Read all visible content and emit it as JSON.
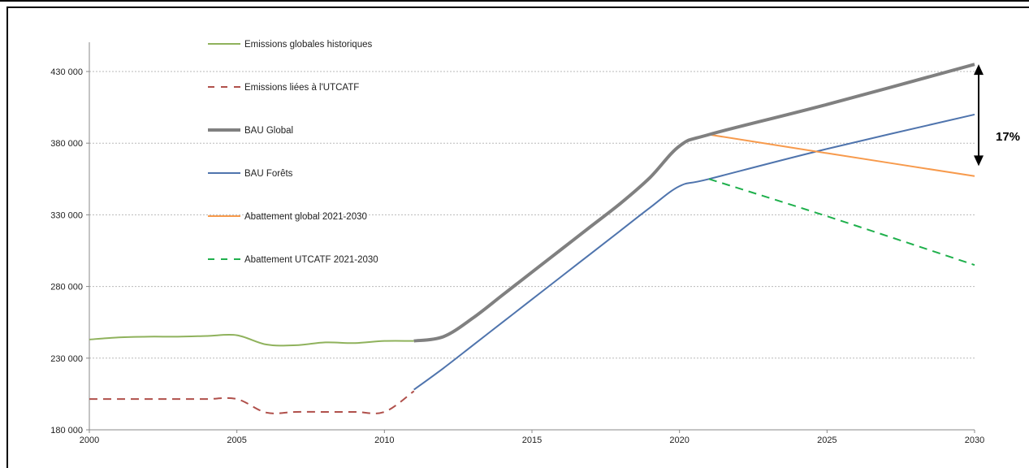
{
  "chart_data": {
    "type": "line",
    "title": "",
    "xlabel": "",
    "ylabel": "",
    "xlim": [
      2000,
      2030
    ],
    "ylim": [
      180000,
      430000
    ],
    "x_ticks": [
      2000,
      2005,
      2010,
      2015,
      2020,
      2025,
      2030
    ],
    "y_ticks": [
      180000,
      230000,
      280000,
      330000,
      380000,
      430000
    ],
    "x_tick_labels": [
      "2000",
      "2005",
      "2010",
      "2015",
      "2020",
      "2025",
      "2030"
    ],
    "y_tick_labels": [
      "180 000",
      "230 000",
      "280 000",
      "330 000",
      "380 000",
      "430 000"
    ],
    "grid": "horizontal",
    "legend_position": "top-left",
    "series": [
      {
        "name": "Emissions globales historiques",
        "color": "#8fb25c",
        "style": "solid",
        "x": [
          2000,
          2001,
          2002,
          2003,
          2004,
          2005,
          2006,
          2007,
          2008,
          2009,
          2010,
          2011
        ],
        "y": [
          243000,
          244500,
          245000,
          245000,
          245500,
          246000,
          239500,
          239000,
          241000,
          240500,
          242000,
          242000
        ]
      },
      {
        "name": "Emissions liées à l'UTCATF",
        "color": "#b0504b",
        "style": "dashed",
        "x": [
          2000,
          2001,
          2002,
          2003,
          2004,
          2005,
          2006,
          2007,
          2008,
          2009,
          2010,
          2011
        ],
        "y": [
          201500,
          201500,
          201500,
          201500,
          201500,
          201500,
          192000,
          192500,
          192500,
          192500,
          192500,
          207000
        ]
      },
      {
        "name": "BAU Global",
        "color": "#808080",
        "style": "solid-thick",
        "x": [
          2011,
          2012,
          2013,
          2014,
          2015,
          2016,
          2017,
          2018,
          2019,
          2020,
          2021,
          2025,
          2030
        ],
        "y": [
          242000,
          245000,
          258000,
          274000,
          290000,
          306000,
          322000,
          338000,
          356000,
          378000,
          386000,
          407000,
          435000
        ]
      },
      {
        "name": "BAU Forêts",
        "color": "#4f74ad",
        "style": "solid",
        "x": [
          2011,
          2012,
          2013,
          2014,
          2015,
          2016,
          2017,
          2018,
          2019,
          2020,
          2021,
          2025,
          2030
        ],
        "y": [
          208000,
          223000,
          239000,
          255000,
          271000,
          287000,
          303000,
          319000,
          335000,
          350000,
          355000,
          376000,
          400000
        ]
      },
      {
        "name": "Abattement global 2021-2030",
        "color": "#f79a4c",
        "style": "solid",
        "x": [
          2021,
          2025,
          2030
        ],
        "y": [
          386000,
          373000,
          357000
        ]
      },
      {
        "name": "Abattement UTCATF 2021-2030",
        "color": "#1fb04c",
        "style": "dashed",
        "x": [
          2021,
          2025,
          2030
        ],
        "y": [
          355000,
          329000,
          295000
        ]
      }
    ],
    "annotations": [
      {
        "text": "17%",
        "arrow_x": 2030,
        "arrow_y_top": 435000,
        "arrow_y_bottom": 364000
      }
    ]
  }
}
